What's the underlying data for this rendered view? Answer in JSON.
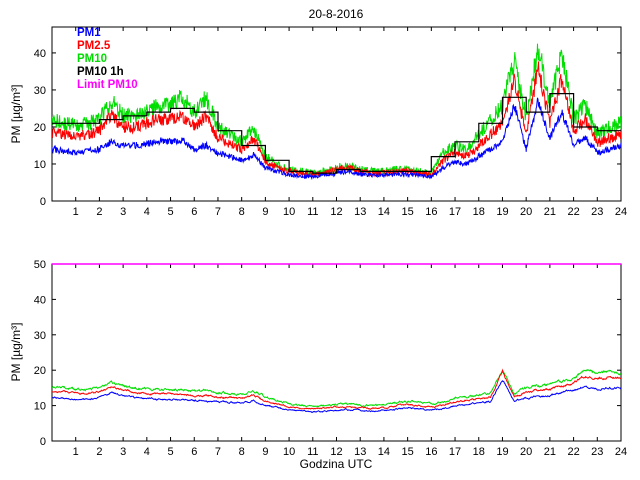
{
  "figure": {
    "title": "20-8-2016"
  },
  "chart_data": [
    {
      "type": "line",
      "title": "20-8-2016",
      "xlabel": "",
      "ylabel": "PM [µg/m³]",
      "xlim": [
        0,
        24
      ],
      "ylim": [
        0,
        47
      ],
      "xticks": [
        1,
        2,
        3,
        4,
        5,
        6,
        7,
        8,
        9,
        10,
        11,
        12,
        13,
        14,
        15,
        16,
        17,
        18,
        19,
        20,
        21,
        22,
        23,
        24
      ],
      "yticks": [
        0,
        10,
        20,
        30,
        40
      ],
      "grid": false,
      "legend_position": "top-left-inside",
      "anchor_step": 0.5,
      "series": [
        {
          "name": "PM10",
          "color": "#00dd00",
          "noise": 1.2,
          "values": [
            22,
            21,
            20.5,
            21,
            22,
            27,
            23,
            23,
            24,
            26,
            26,
            28,
            24,
            28,
            20,
            18,
            16,
            20,
            12,
            10,
            8.5,
            8,
            7.5,
            8,
            9,
            9.5,
            8.5,
            8,
            8,
            8.5,
            8.5,
            8,
            7.5,
            13,
            15,
            14,
            18,
            22,
            26,
            38,
            22,
            42,
            26,
            40,
            22,
            26,
            18,
            20,
            21
          ]
        },
        {
          "name": "PM2.5",
          "color": "#ff0000",
          "noise": 1.0,
          "values": [
            18.5,
            18,
            17.5,
            18,
            19,
            23,
            20,
            20,
            21,
            22,
            22,
            23,
            20,
            23,
            17,
            15.5,
            14,
            17,
            10.5,
            9,
            8,
            7.5,
            7,
            7.5,
            8.5,
            9,
            8,
            7.5,
            7.5,
            8,
            8,
            7.5,
            7,
            11,
            13,
            12,
            15,
            18,
            21,
            33,
            18,
            36,
            21,
            33,
            19,
            22,
            15.5,
            17,
            18
          ]
        },
        {
          "name": "PM1",
          "color": "#0000ff",
          "noise": 0.7,
          "values": [
            14,
            13.5,
            13,
            13.5,
            14,
            16,
            15,
            15,
            15.5,
            16,
            16,
            16.5,
            14,
            15,
            13,
            12,
            11,
            12.5,
            9,
            8,
            7,
            6.8,
            6.5,
            7,
            7.5,
            8,
            7.2,
            7,
            7,
            7.2,
            7.2,
            7,
            6.5,
            9,
            10.5,
            10,
            12,
            14,
            16,
            26,
            14,
            27,
            17,
            24,
            15,
            17,
            13,
            14,
            15
          ]
        }
      ],
      "step_series": {
        "name": "PM10 1h",
        "color": "#000000",
        "values": [
          21,
          21,
          22,
          23,
          24,
          25,
          24,
          19,
          15,
          11,
          8,
          7.5,
          8.5,
          8,
          8,
          8,
          12,
          16,
          21,
          28,
          24,
          29,
          20,
          19
        ]
      },
      "legend": [
        {
          "label": "PM1",
          "color": "#0000ff"
        },
        {
          "label": "PM2.5",
          "color": "#ff0000"
        },
        {
          "label": "PM10",
          "color": "#00dd00"
        },
        {
          "label": "PM10 1h",
          "color": "#000000"
        },
        {
          "label": "Limit PM10",
          "color": "#ff00ff"
        }
      ]
    },
    {
      "type": "line",
      "title": "",
      "xlabel": "Godzina UTC",
      "ylabel": "PM [µg/m³]",
      "xlim": [
        0,
        24
      ],
      "ylim": [
        0,
        50
      ],
      "xticks": [
        1,
        2,
        3,
        4,
        5,
        6,
        7,
        8,
        9,
        10,
        11,
        12,
        13,
        14,
        15,
        16,
        17,
        18,
        19,
        20,
        21,
        22,
        23,
        24
      ],
      "yticks": [
        0,
        10,
        20,
        30,
        40,
        50
      ],
      "grid": false,
      "anchor_step": 0.5,
      "series": [
        {
          "name": "PM10",
          "color": "#00dd00",
          "noise": 0.3,
          "values": [
            15,
            15,
            14.5,
            14.5,
            15,
            16.5,
            15.5,
            15,
            14.5,
            14.5,
            14.5,
            14.5,
            14,
            14,
            13.5,
            13.5,
            13,
            14,
            12.5,
            11.5,
            10.5,
            10,
            9.8,
            10,
            10.3,
            10.5,
            10.3,
            10,
            10.3,
            10.8,
            11.2,
            11,
            10.5,
            11,
            12,
            12.5,
            13,
            13.5,
            20.5,
            13.5,
            15,
            15.5,
            16,
            17,
            17.5,
            20,
            19,
            19.5,
            19
          ]
        },
        {
          "name": "PM2.5",
          "color": "#ff0000",
          "noise": 0.25,
          "values": [
            13.8,
            13.8,
            13.3,
            13.3,
            13.8,
            15.3,
            14.3,
            13.8,
            13.3,
            13.3,
            13.3,
            13.3,
            12.8,
            12.8,
            12.3,
            12.3,
            11.8,
            12.8,
            11.3,
            10.5,
            9.6,
            9.2,
            9,
            9.2,
            9.5,
            9.6,
            9.5,
            9.2,
            9.5,
            9.9,
            10.3,
            10.1,
            9.6,
            10.1,
            11,
            11.5,
            12,
            12.5,
            19.5,
            12.5,
            13.8,
            14.3,
            14.8,
            15.7,
            16.2,
            18.5,
            17.5,
            18,
            17.5
          ]
        },
        {
          "name": "PM1",
          "color": "#0000ff",
          "noise": 0.25,
          "values": [
            12.2,
            12.2,
            11.8,
            11.8,
            12.2,
            13.5,
            12.7,
            12.3,
            11.8,
            11.8,
            11.8,
            11.8,
            11.4,
            11.4,
            11,
            11,
            10.6,
            11.4,
            10.2,
            9.5,
            8.8,
            8.4,
            8.2,
            8.4,
            8.7,
            8.8,
            8.7,
            8.4,
            8.7,
            9,
            9.4,
            9.2,
            8.8,
            9.2,
            10,
            10.3,
            10.8,
            11.2,
            17.5,
            11.2,
            12.2,
            12.6,
            13,
            13.8,
            14.2,
            15.5,
            14.5,
            15,
            15
          ]
        }
      ],
      "limit_line": {
        "name": "Limit PM10",
        "color": "#ff00ff",
        "value": 50
      }
    }
  ]
}
